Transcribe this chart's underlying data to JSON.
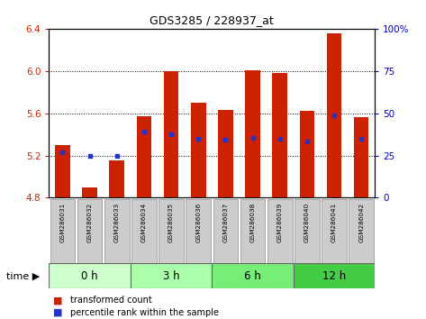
{
  "title": "GDS3285 / 228937_at",
  "samples": [
    "GSM286031",
    "GSM286032",
    "GSM286033",
    "GSM286034",
    "GSM286035",
    "GSM286036",
    "GSM286037",
    "GSM286038",
    "GSM286039",
    "GSM286040",
    "GSM286041",
    "GSM286042"
  ],
  "bar_tops": [
    5.3,
    4.9,
    5.15,
    5.57,
    6.0,
    5.7,
    5.63,
    6.01,
    5.98,
    5.62,
    6.36,
    5.56
  ],
  "bar_bottom": 4.8,
  "percentile_values": [
    5.23,
    5.2,
    5.2,
    5.43,
    5.4,
    5.36,
    5.35,
    5.37,
    5.36,
    5.33,
    5.58,
    5.36
  ],
  "ylim": [
    4.8,
    6.4
  ],
  "yticks_left": [
    4.8,
    5.2,
    5.6,
    6.0,
    6.4
  ],
  "yticks_right": [
    0,
    25,
    50,
    75,
    100
  ],
  "bar_color": "#cc2200",
  "dot_color": "#2233cc",
  "groups": [
    {
      "label": "0 h",
      "start": 0,
      "end": 3
    },
    {
      "label": "3 h",
      "start": 3,
      "end": 6
    },
    {
      "label": "6 h",
      "start": 6,
      "end": 9
    },
    {
      "label": "12 h",
      "start": 9,
      "end": 12
    }
  ],
  "group_colors": [
    "#ccffcc",
    "#aaffaa",
    "#77ee77",
    "#44cc44"
  ],
  "time_label": "time",
  "legend_bar_label": "transformed count",
  "legend_dot_label": "percentile rank within the sample",
  "bg_color": "#ffffff",
  "sample_bg_color": "#cccccc",
  "bar_width": 0.55
}
